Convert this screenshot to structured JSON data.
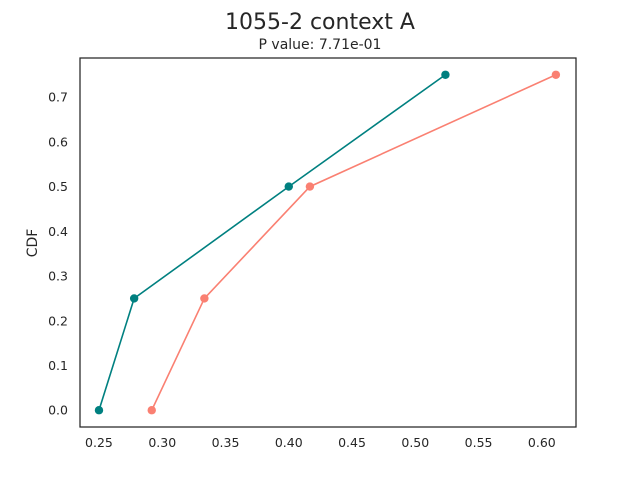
{
  "chart_data": {
    "type": "line",
    "title": "1055-2 context A",
    "subtitle": "P value: 7.71e-01",
    "xlabel": "",
    "ylabel": "CDF",
    "xlim": [
      0.235,
      0.627
    ],
    "ylim": [
      -0.0375,
      0.7875
    ],
    "xticks": [
      "0.25",
      "0.30",
      "0.35",
      "0.40",
      "0.45",
      "0.50",
      "0.55",
      "0.60"
    ],
    "yticks": [
      "0.0",
      "0.1",
      "0.2",
      "0.3",
      "0.4",
      "0.5",
      "0.6",
      "0.7"
    ],
    "grid": false,
    "series": [
      {
        "color": "#008080",
        "x": [
          0.25,
          0.2778,
          0.4,
          0.5238
        ],
        "y": [
          0.0,
          0.25,
          0.5,
          0.75
        ]
      },
      {
        "color": "#FA8072",
        "x": [
          0.2917,
          0.3333,
          0.4167,
          0.6111
        ],
        "y": [
          0.0,
          0.25,
          0.5,
          0.75
        ]
      }
    ]
  }
}
